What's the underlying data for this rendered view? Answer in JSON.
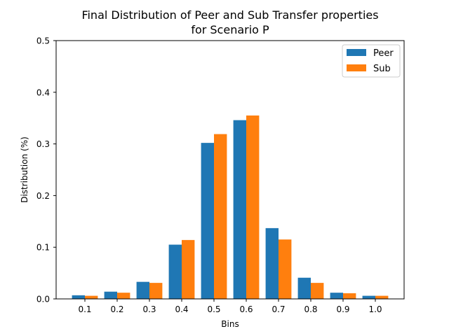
{
  "chart_data": {
    "type": "bar",
    "title": "Final Distribution of Peer and Sub Transfer properties",
    "subtitle": "for Scenario P",
    "xlabel": "Bins",
    "ylabel": "Distribution (%)",
    "categories": [
      "0.1",
      "0.2",
      "0.3",
      "0.4",
      "0.5",
      "0.6",
      "0.7",
      "0.8",
      "0.9",
      "1.0"
    ],
    "series": [
      {
        "name": "Peer",
        "color": "#1f77b4",
        "values": [
          0.007,
          0.014,
          0.033,
          0.105,
          0.302,
          0.346,
          0.137,
          0.041,
          0.012,
          0.006
        ]
      },
      {
        "name": "Sub",
        "color": "#ff7f0e",
        "values": [
          0.006,
          0.012,
          0.031,
          0.114,
          0.319,
          0.355,
          0.115,
          0.031,
          0.011,
          0.006
        ]
      }
    ],
    "ylim": [
      0,
      0.5
    ],
    "yticks": [
      "0.0",
      "0.1",
      "0.2",
      "0.3",
      "0.4",
      "0.5"
    ],
    "grid": false,
    "legend_position": "top-right"
  }
}
